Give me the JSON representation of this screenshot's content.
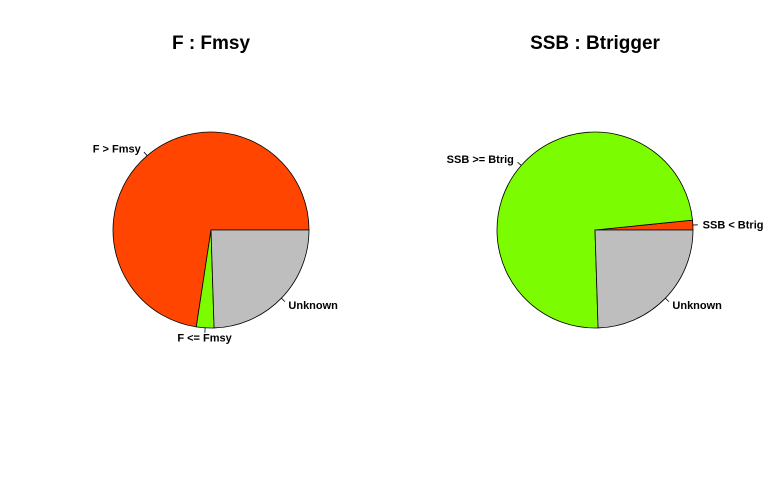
{
  "chart_data": [
    {
      "type": "pie",
      "title": "F : Fmsy",
      "slices": [
        {
          "label": "F > Fmsy",
          "value": 72.6,
          "color": "#FF4500"
        },
        {
          "label": "F <= Fmsy",
          "value": 2.9,
          "color": "#7CFC00"
        },
        {
          "label": "Unknown",
          "value": 24.5,
          "color": "#BEBEBE"
        }
      ]
    },
    {
      "type": "pie",
      "title": "SSB : Btrigger",
      "slices": [
        {
          "label": "SSB < Btrig",
          "value": 1.6,
          "color": "#FF4500"
        },
        {
          "label": "SSB >= Btrig",
          "value": 73.9,
          "color": "#7CFC00"
        },
        {
          "label": "Unknown",
          "value": 24.5,
          "color": "#BEBEBE"
        }
      ]
    }
  ]
}
